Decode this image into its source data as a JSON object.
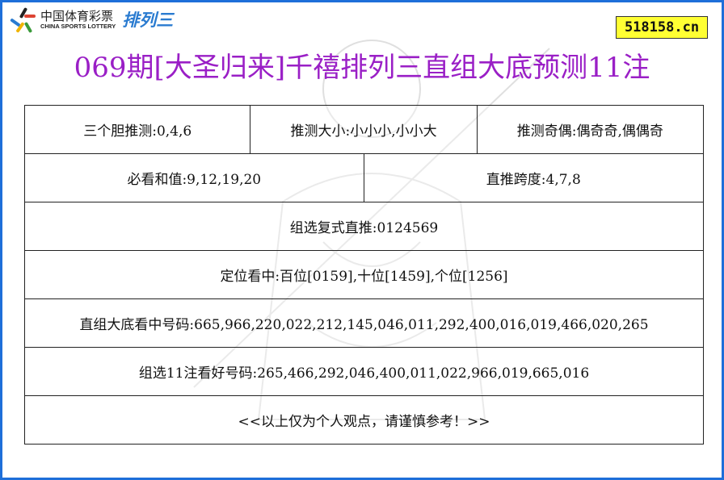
{
  "logo": {
    "cn": "中国体育彩票",
    "en": "CHINA SPORTS LOTTERY",
    "product": "排列三"
  },
  "site": "518158.cn",
  "title": "069期[大圣归来]千禧排列三直组大底预测11注",
  "rows": {
    "dan": "三个胆推测:0,4,6",
    "size": "推测大小:小小小,小小大",
    "parity": "推测奇偶:偶奇奇,偶偶奇",
    "sum": "必看和值:9,12,19,20",
    "span": "直推跨度:4,7,8",
    "compound": "组选复式直推:0124569",
    "position": "定位看中:百位[0159],十位[1459],个位[1256]",
    "direct": "直组大底看中号码:665,966,220,022,212,145,046,011,292,400,016,019,466,020,265",
    "group11": "组选11注看好号码:265,466,292,046,400,011,022,966,019,665,016",
    "note": "<<以上仅为个人观点，请谨慎参考！>>"
  },
  "colors": {
    "title": "#9a1fc6",
    "border": "#1e6fd9",
    "badge": "#ffff33"
  }
}
